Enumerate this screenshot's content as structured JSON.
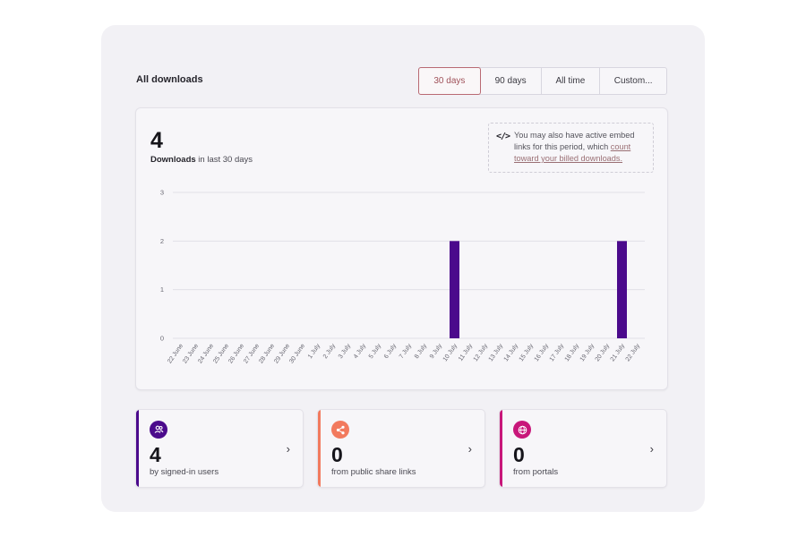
{
  "section_title": "All downloads",
  "ranges": [
    {
      "label": "30 days",
      "active": true
    },
    {
      "label": "90 days",
      "active": false
    },
    {
      "label": "All time",
      "active": false
    },
    {
      "label": "Custom...",
      "active": false
    }
  ],
  "summary": {
    "total": "4",
    "caption_bold": "Downloads",
    "caption_rest": " in last 30 days"
  },
  "embed_note": {
    "text": "You may also have active embed links for this period, which ",
    "link": "count toward your billed downloads."
  },
  "chart_data": {
    "type": "bar",
    "categories": [
      "22 June",
      "23 June",
      "24 June",
      "25 June",
      "26 June",
      "27 June",
      "28 June",
      "29 June",
      "30 June",
      "1 July",
      "2 July",
      "3 July",
      "4 July",
      "5 July",
      "6 July",
      "7 July",
      "8 July",
      "9 July",
      "10 July",
      "11 July",
      "12 July",
      "13 July",
      "14 July",
      "15 July",
      "16 July",
      "17 July",
      "18 July",
      "19 July",
      "20 July",
      "21 July",
      "22 July"
    ],
    "values": [
      0,
      0,
      0,
      0,
      0,
      0,
      0,
      0,
      0,
      0,
      0,
      0,
      0,
      0,
      0,
      0,
      0,
      0,
      2,
      0,
      0,
      0,
      0,
      0,
      0,
      0,
      0,
      0,
      0,
      2,
      0
    ],
    "yticks": [
      0,
      1,
      2,
      3
    ],
    "ylim": [
      0,
      3
    ],
    "grid": true,
    "bar_color": "#4b0a8c"
  },
  "cards": [
    {
      "value": "4",
      "label": "by signed-in users",
      "icon": "users-icon",
      "color": "#4b0a8c"
    },
    {
      "value": "0",
      "label": "from public share links",
      "icon": "share-icon",
      "color": "#f27a5e"
    },
    {
      "value": "0",
      "label": "from portals",
      "icon": "globe-icon",
      "color": "#c8177a"
    }
  ]
}
